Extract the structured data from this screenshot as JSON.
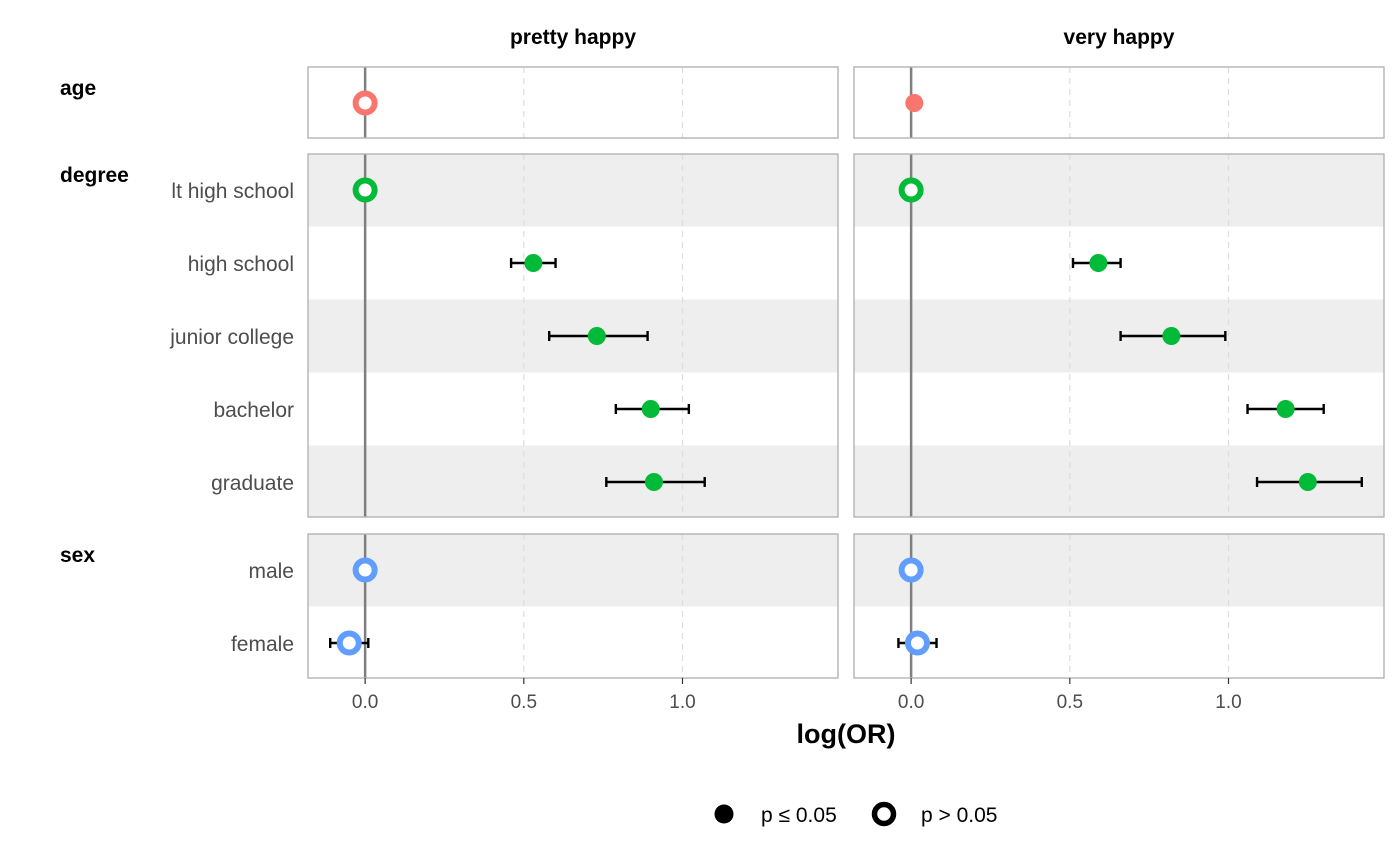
{
  "chart_data": {
    "type": "scatter",
    "title": "",
    "xlabel": "log(OR)",
    "ylabel": "",
    "xlim": [
      -0.18,
      1.49
    ],
    "x_ticks": [
      0.0,
      0.5,
      1.0
    ],
    "x_tick_labels": [
      "0.0",
      "0.5",
      "1.0"
    ],
    "grid": true,
    "reference_line_x": 0,
    "panels": [
      {
        "name": "pretty happy"
      },
      {
        "name": "very happy"
      }
    ],
    "groups": [
      {
        "name": "age",
        "color": "#F8766D",
        "rows": [
          {
            "label": "",
            "pretty happy": {
              "est": 0.0,
              "low": null,
              "high": null,
              "significant": false
            },
            "very happy": {
              "est": 0.01,
              "low": null,
              "high": null,
              "significant": true
            }
          }
        ]
      },
      {
        "name": "degree",
        "color": "#00BA38",
        "rows": [
          {
            "label": "lt high school",
            "pretty happy": {
              "est": 0.0,
              "low": null,
              "high": null,
              "significant": false
            },
            "very happy": {
              "est": 0.0,
              "low": null,
              "high": null,
              "significant": false
            }
          },
          {
            "label": "high school",
            "pretty happy": {
              "est": 0.53,
              "low": 0.46,
              "high": 0.6,
              "significant": true
            },
            "very happy": {
              "est": 0.59,
              "low": 0.51,
              "high": 0.66,
              "significant": true
            }
          },
          {
            "label": "junior college",
            "pretty happy": {
              "est": 0.73,
              "low": 0.58,
              "high": 0.89,
              "significant": true
            },
            "very happy": {
              "est": 0.82,
              "low": 0.66,
              "high": 0.99,
              "significant": true
            }
          },
          {
            "label": "bachelor",
            "pretty happy": {
              "est": 0.9,
              "low": 0.79,
              "high": 1.02,
              "significant": true
            },
            "very happy": {
              "est": 1.18,
              "low": 1.06,
              "high": 1.3,
              "significant": true
            }
          },
          {
            "label": "graduate",
            "pretty happy": {
              "est": 0.91,
              "low": 0.76,
              "high": 1.07,
              "significant": true
            },
            "very happy": {
              "est": 1.25,
              "low": 1.09,
              "high": 1.42,
              "significant": true
            }
          }
        ]
      },
      {
        "name": "sex",
        "color": "#619CFF",
        "rows": [
          {
            "label": "male",
            "pretty happy": {
              "est": 0.0,
              "low": null,
              "high": null,
              "significant": false
            },
            "very happy": {
              "est": 0.0,
              "low": null,
              "high": null,
              "significant": false
            }
          },
          {
            "label": "female",
            "pretty happy": {
              "est": -0.05,
              "low": -0.11,
              "high": 0.01,
              "significant": false
            },
            "very happy": {
              "est": 0.02,
              "low": -0.04,
              "high": 0.08,
              "significant": false
            }
          }
        ]
      }
    ],
    "legend": {
      "position": "bottom",
      "items": [
        {
          "label": "p ≤ 0.05",
          "shape": "filled-circle"
        },
        {
          "label": "p > 0.05",
          "shape": "open-circle"
        }
      ]
    },
    "colors": {
      "band": "#EEEEEE",
      "panel_border": "#B3B3B3",
      "grid": "#DDDDDD",
      "zero_line": "#7F7F7F",
      "errorbar": "#000000"
    }
  }
}
